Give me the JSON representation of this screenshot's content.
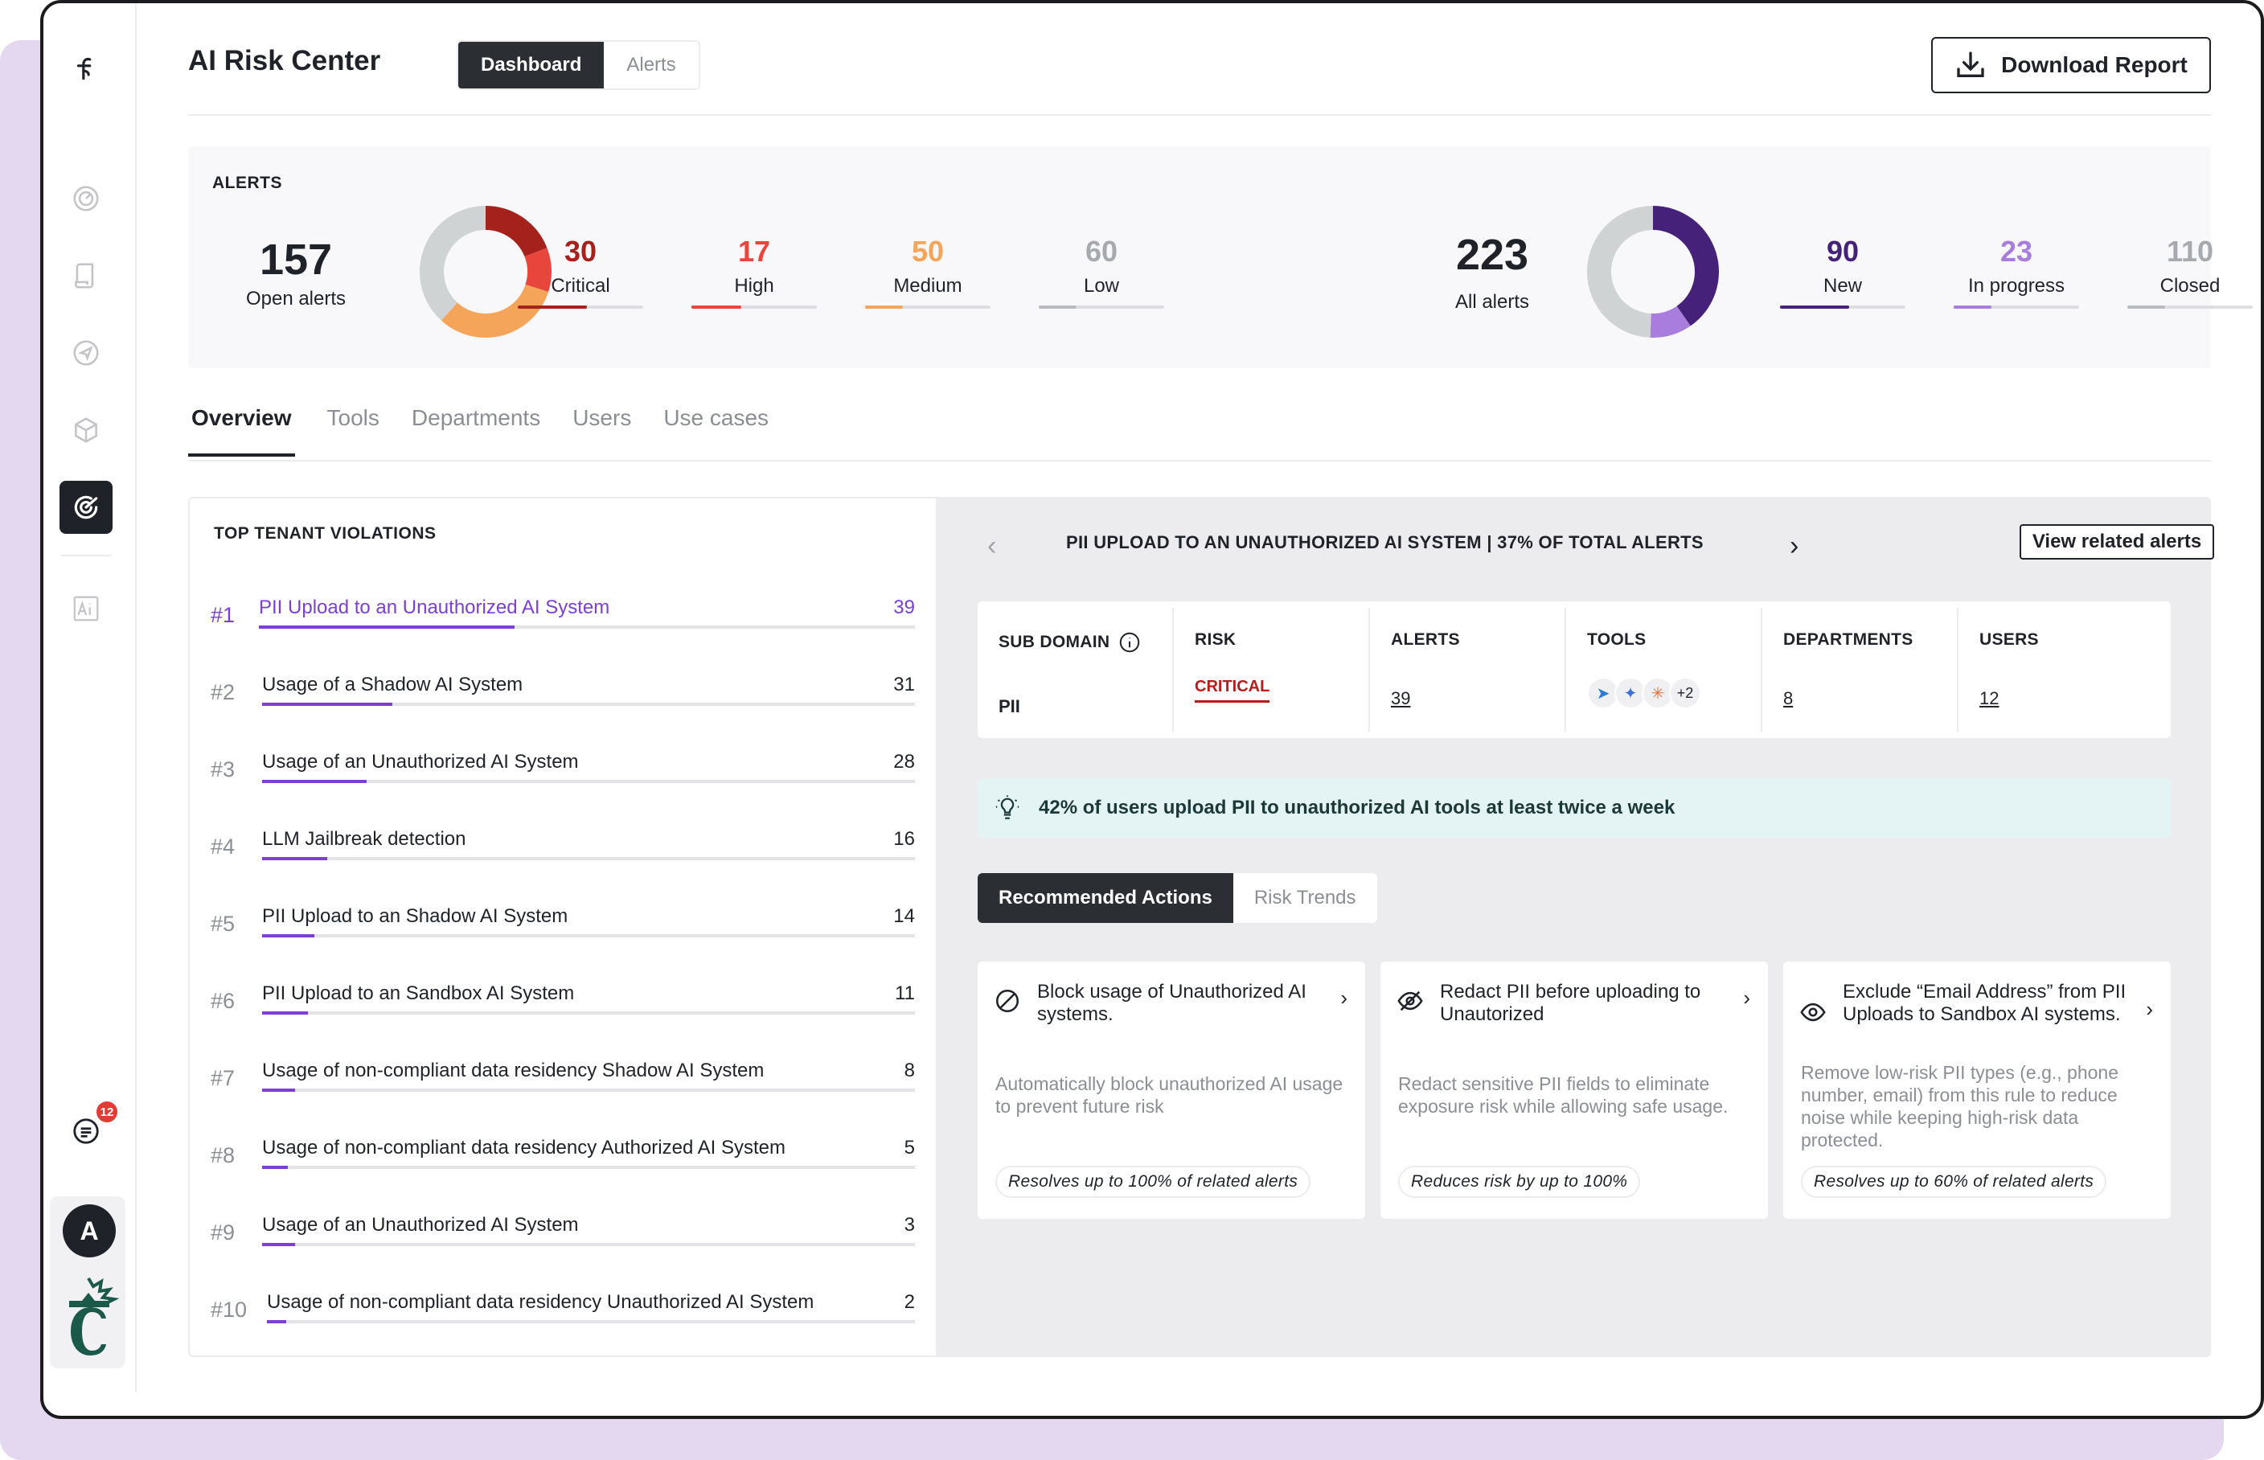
{
  "app": {
    "title": "AI Risk Center",
    "view_tabs": [
      "Dashboard",
      "Alerts"
    ],
    "download_label": "Download Report"
  },
  "sidebar": {
    "badge_count": "12",
    "avatar_initial": "A"
  },
  "alerts": {
    "label": "ALERTS",
    "open_total": "157",
    "open_label": "Open alerts",
    "severity": [
      {
        "value": "30",
        "label": "Critical",
        "color": "#a5221c",
        "pct": 0.55
      },
      {
        "value": "17",
        "label": "High",
        "color": "#e8453c",
        "pct": 0.4
      },
      {
        "value": "50",
        "label": "Medium",
        "color": "#f5a55a",
        "pct": 0.3
      },
      {
        "value": "60",
        "label": "Low",
        "color": "#d0d3d3",
        "pct": 0.3
      }
    ],
    "all_total": "223",
    "all_label": "All alerts",
    "status": [
      {
        "value": "90",
        "label": "New",
        "color": "#46217a",
        "pct": 0.55
      },
      {
        "value": "23",
        "label": "In progress",
        "color": "#a87ddd",
        "pct": 0.3
      },
      {
        "value": "110",
        "label": "Closed",
        "color": "#d0d3d3",
        "pct": 0.3
      }
    ]
  },
  "section_tabs": [
    "Overview",
    "Tools",
    "Departments",
    "Users",
    "Use cases"
  ],
  "violations": {
    "label": "TOP TENANT VIOLATIONS",
    "rows": [
      {
        "rank": "#1",
        "name": "PII Upload to an Unauthorized AI System",
        "count": "39",
        "pct": 0.39
      },
      {
        "rank": "#2",
        "name": "Usage of a Shadow AI System",
        "count": "31",
        "pct": 0.2
      },
      {
        "rank": "#3",
        "name": "Usage of an Unauthorized AI System",
        "count": "28",
        "pct": 0.16
      },
      {
        "rank": "#4",
        "name": "LLM Jailbreak detection",
        "count": "16",
        "pct": 0.1
      },
      {
        "rank": "#5",
        "name": "PII Upload to an Shadow AI System",
        "count": "14",
        "pct": 0.08
      },
      {
        "rank": "#6",
        "name": "PII Upload to an Sandbox AI System",
        "count": "11",
        "pct": 0.07
      },
      {
        "rank": "#7",
        "name": "Usage of non-compliant data residency Shadow AI System",
        "count": "8",
        "pct": 0.05
      },
      {
        "rank": "#8",
        "name": "Usage of non-compliant data residency Authorized AI System",
        "count": "5",
        "pct": 0.04
      },
      {
        "rank": "#9",
        "name": "Usage of an Unauthorized AI System",
        "count": "3",
        "pct": 0.05
      },
      {
        "rank": "#10",
        "name": "Usage of non-compliant data residency Unauthorized AI System",
        "count": "2",
        "pct": 0.03
      }
    ]
  },
  "detail": {
    "prev": "‹",
    "next": "›",
    "title": "PII UPLOAD TO AN UNAUTHORIZED AI SYSTEM | 37% OF TOTAL ALERTS",
    "view_related": "View related alerts",
    "columns": {
      "subdomain_h": "SUB DOMAIN",
      "subdomain_v": "PII",
      "risk_h": "RISK",
      "risk_v": "CRITICAL",
      "alerts_h": "ALERTS",
      "alerts_v": "39",
      "tools_h": "TOOLS",
      "tools_more": "+2",
      "departments_h": "DEPARTMENTS",
      "departments_v": "8",
      "users_h": "USERS",
      "users_v": "12"
    },
    "insight": "42% of users upload PII to unauthorized AI tools at least twice a week",
    "action_tabs": [
      "Recommended Actions",
      "Risk Trends"
    ],
    "actions": [
      {
        "title": "Block usage of Unauthorized AI systems.",
        "desc": "Automatically block unauthorized AI usage to prevent future risk",
        "pill": "Resolves up to 100% of related alerts"
      },
      {
        "title": "Redact PII before uploading to Unautorized",
        "desc": "Redact sensitive PII fields to eliminate exposure risk while allowing safe usage.",
        "pill": "Reduces risk by up to 100%"
      },
      {
        "title": "Exclude “Email Address” from PII Uploads to Sandbox AI systems.",
        "desc": "Remove low-risk PII types (e.g., phone number, email) from this rule to reduce noise while keeping high-risk data protected.",
        "pill": "Resolves up to 60% of related alerts"
      }
    ]
  }
}
